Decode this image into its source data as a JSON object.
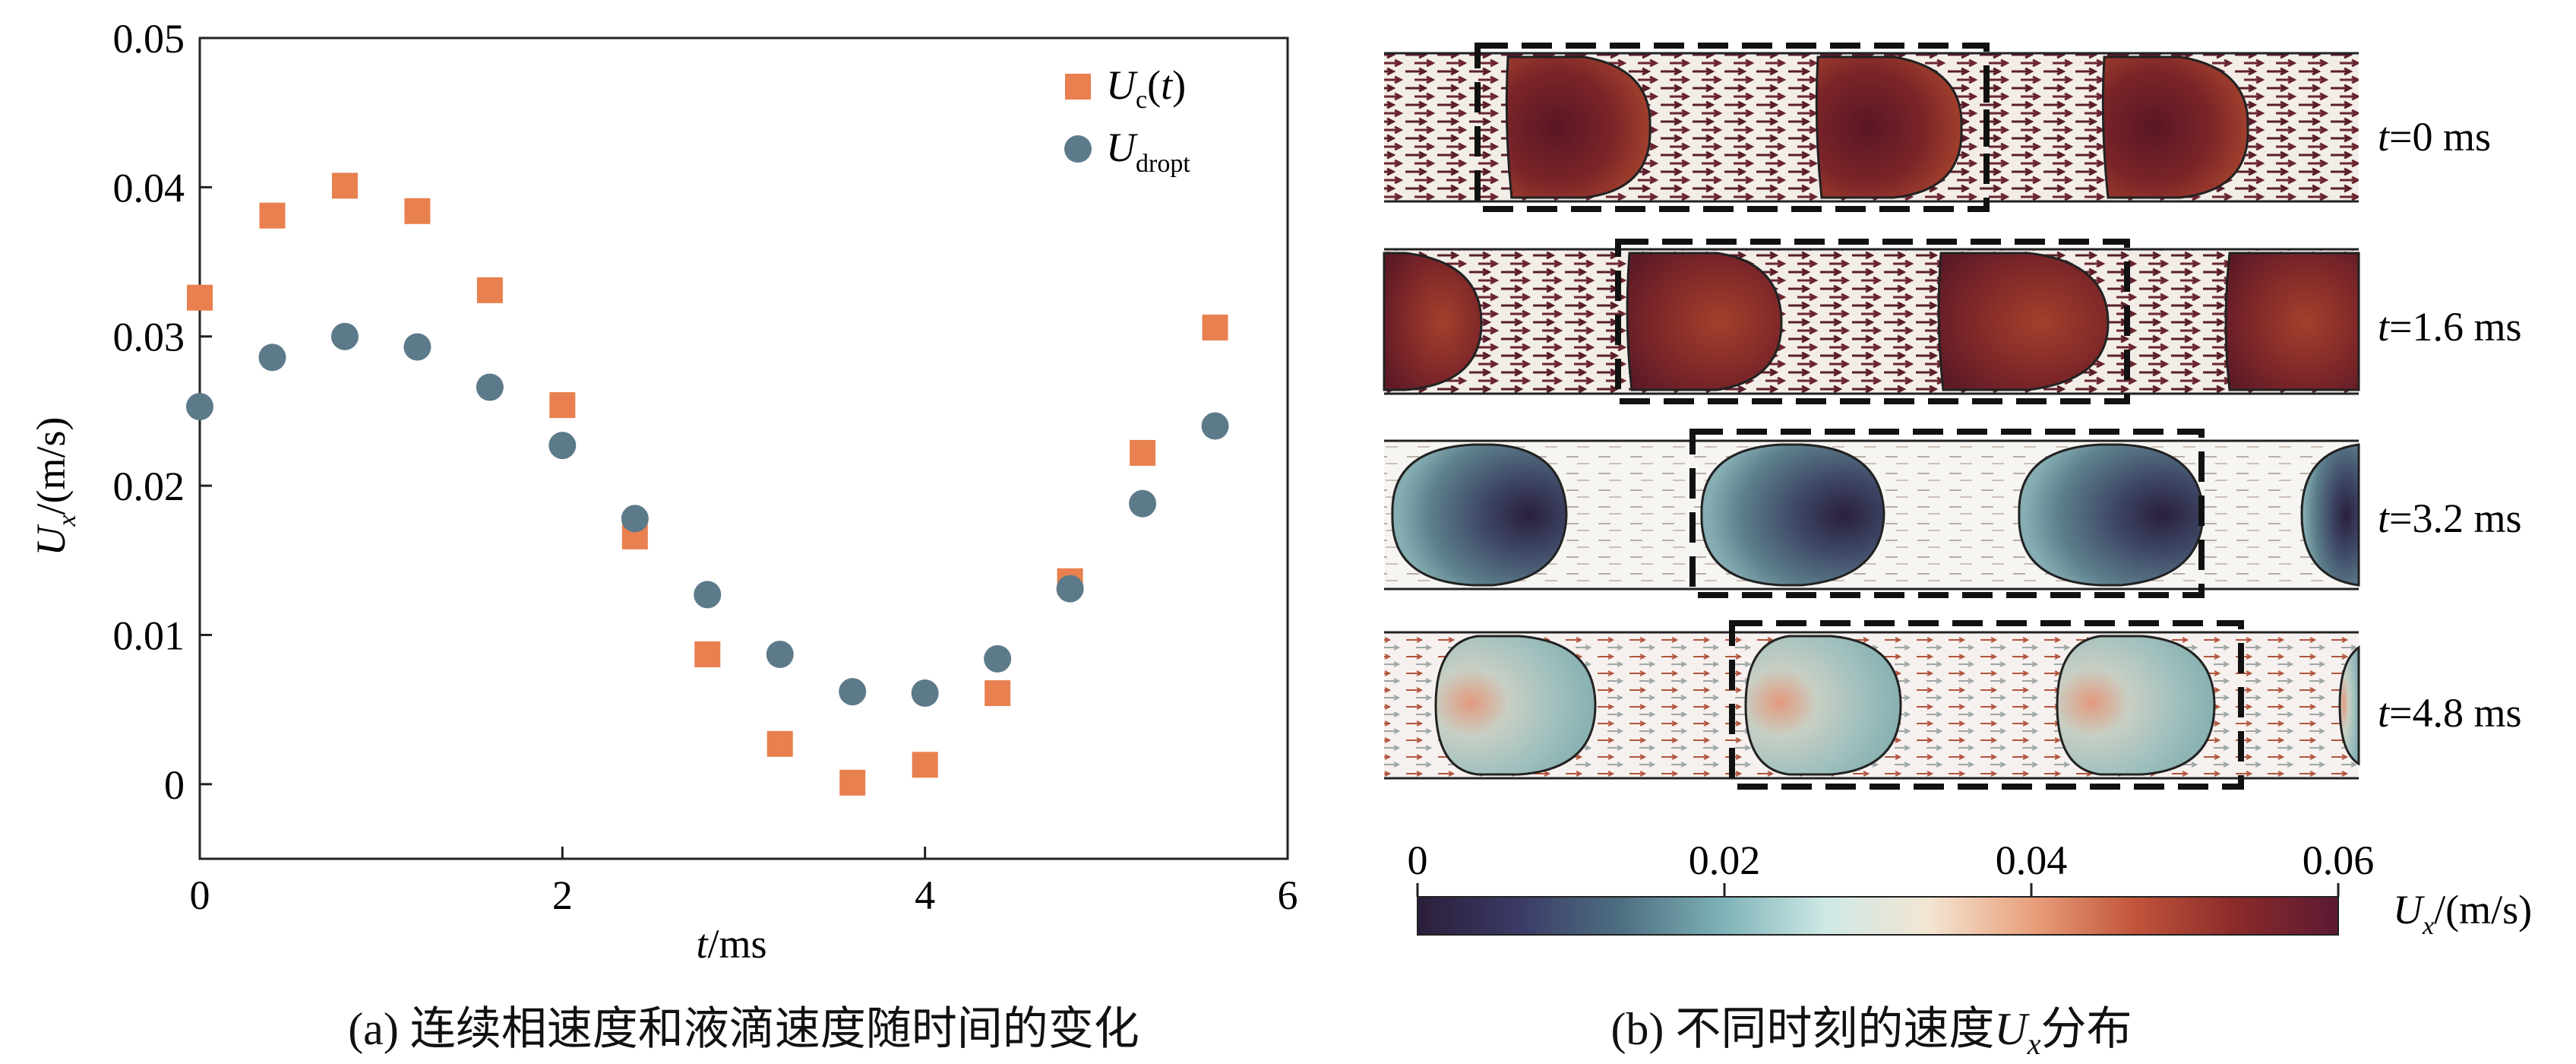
{
  "chart_data": [
    {
      "type": "scatter",
      "xlim": [
        0,
        6
      ],
      "ylim": [
        -0.005,
        0.05
      ],
      "xticks": [
        "0",
        "2",
        "4",
        "6"
      ],
      "yticks": [
        "0",
        "0.01",
        "0.02",
        "0.03",
        "0.04",
        "0.05"
      ],
      "xlabel": "t/ms",
      "ylabel": "U_x/(m/s)",
      "grid": false,
      "legend_position": "top-right",
      "series": [
        {
          "name": "U_c(t)",
          "marker": "square",
          "color": "#e8804f",
          "x": [
            0,
            0.4,
            0.8,
            1.2,
            1.6,
            2.0,
            2.4,
            2.8,
            3.2,
            3.6,
            4.0,
            4.4,
            4.8,
            5.2,
            5.6
          ],
          "y": [
            0.0326,
            0.0381,
            0.0401,
            0.0384,
            0.0331,
            0.0254,
            0.0166,
            0.0087,
            0.0027,
            0.0001,
            0.0013,
            0.0061,
            0.0136,
            0.0222,
            0.0306
          ]
        },
        {
          "name": "U_dropt",
          "marker": "circle",
          "color": "#5d7a8a",
          "x": [
            0,
            0.4,
            0.8,
            1.2,
            1.6,
            2.0,
            2.4,
            2.8,
            3.2,
            3.6,
            4.0,
            4.4,
            4.8,
            5.2,
            5.6
          ],
          "y": [
            0.0253,
            0.0286,
            0.03,
            0.0293,
            0.0266,
            0.0227,
            0.0178,
            0.0127,
            0.0087,
            0.0062,
            0.0061,
            0.0084,
            0.0131,
            0.0188,
            0.024
          ]
        }
      ]
    },
    {
      "type": "heatmap",
      "panels": [
        "t=0 ms",
        "t=1.6 ms",
        "t=3.2 ms",
        "t=4.8 ms"
      ],
      "colorbar_ticks": [
        "0",
        "0.02",
        "0.04",
        "0.06"
      ],
      "colorbar_range": [
        0,
        0.06
      ],
      "colorbar_label": "U_x/(m/s)",
      "colormap": [
        "#2b1e3a",
        "#3b3b66",
        "#4e6f82",
        "#7fb3b8",
        "#cfe9e6",
        "#f3e5d2",
        "#e9a07c",
        "#c2553b",
        "#8a2a2a",
        "#5c1a33"
      ]
    }
  ],
  "captions": {
    "left": "(a) 连续相速度和液滴速度随时间的变化",
    "right": "(b) 不同时刻的速度U_x分布"
  }
}
